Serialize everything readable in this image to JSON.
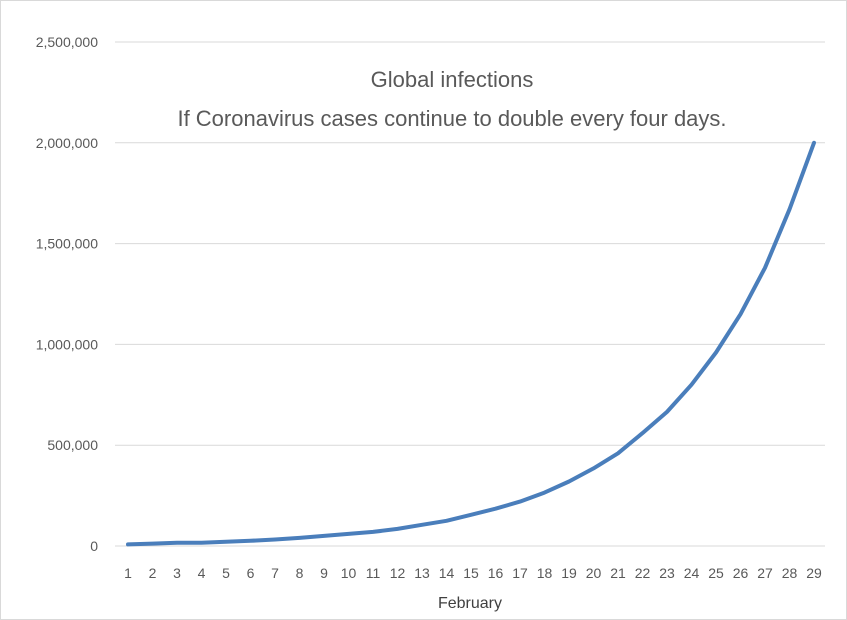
{
  "chart_data": {
    "type": "line",
    "title_line1": "Global infections",
    "title_line2": "If Coronavirus cases continue to double every four days.",
    "xlabel": "February",
    "ylabel": "",
    "ylim": [
      0,
      2500000
    ],
    "yticks": [
      "0",
      "500,000",
      "1,000,000",
      "1,500,000",
      "2,000,000",
      "2,500,000"
    ],
    "ytick_values": [
      0,
      500000,
      1000000,
      1500000,
      2000000,
      2500000
    ],
    "grid": "horizontal",
    "legend": "none",
    "categories": [
      "1",
      "2",
      "3",
      "4",
      "5",
      "6",
      "7",
      "8",
      "9",
      "10",
      "11",
      "12",
      "13",
      "14",
      "15",
      "16",
      "17",
      "18",
      "19",
      "20",
      "21",
      "22",
      "23",
      "24",
      "25",
      "26",
      "27",
      "28",
      "29"
    ],
    "series": [
      {
        "color": "#4a7ebb",
        "values": [
          7800,
          12000,
          16000,
          16500,
          21000,
          26000,
          32000,
          40000,
          50000,
          60000,
          70000,
          85000,
          105000,
          125000,
          155000,
          185000,
          220000,
          265000,
          320000,
          385000,
          460000,
          560000,
          665000,
          800000,
          960000,
          1150000,
          1380000,
          1670000,
          2000000
        ]
      }
    ],
    "frame_color": "#d9d9d9",
    "grid_color": "#d9d9d9",
    "text_color": "#595959"
  }
}
